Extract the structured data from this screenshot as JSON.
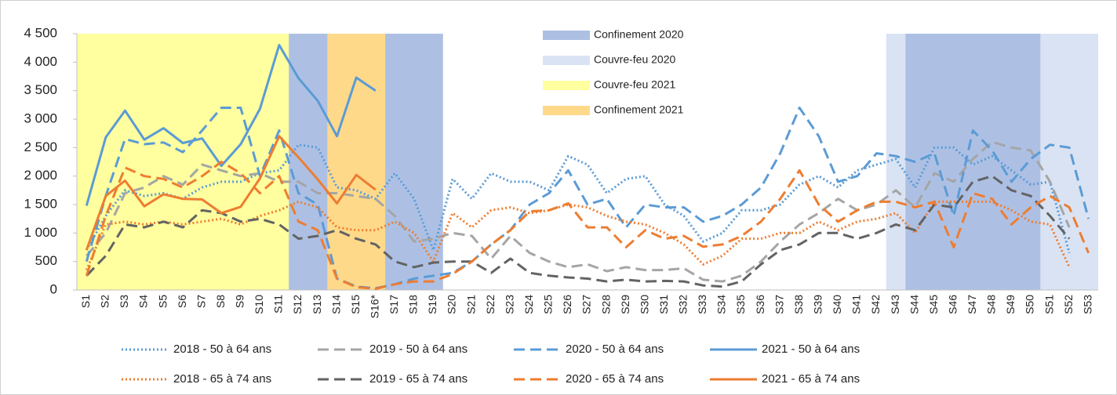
{
  "chart_data": {
    "type": "line",
    "categories": [
      "S1",
      "S2",
      "S3",
      "S4",
      "S5",
      "S6",
      "S7",
      "S8",
      "S9",
      "S10",
      "S11",
      "S12",
      "S13",
      "S14",
      "S15",
      "S16*",
      "S17",
      "S18",
      "S19",
      "S20",
      "S21",
      "S22",
      "S23",
      "S24",
      "S25",
      "S26",
      "S27",
      "S28",
      "S29",
      "S30",
      "S31",
      "S32",
      "S33",
      "S34",
      "S35",
      "S36",
      "S37",
      "S38",
      "S39",
      "S40",
      "S41",
      "S42",
      "S43",
      "S44",
      "S45",
      "S46",
      "S47",
      "S48",
      "S49",
      "S50",
      "S51",
      "S52",
      "S53"
    ],
    "ylim": [
      0,
      4500
    ],
    "yticks": [
      0,
      500,
      {
        "value": 1000,
        "label": "1 000"
      },
      {
        "value": 1500,
        "label": "1 500"
      },
      {
        "value": 2000,
        "label": "2 000"
      },
      {
        "value": 2500,
        "label": "2 500"
      },
      {
        "value": 3000,
        "label": "3 000"
      },
      {
        "value": 3500,
        "label": "3 500"
      },
      {
        "value": 4000,
        "label": "4 000"
      },
      {
        "value": 4500,
        "label": "4 500"
      }
    ],
    "periods": [
      {
        "name": "Confinement 2020",
        "color": "#adc0e4",
        "spans": [
          [
            "S12",
            "S19"
          ],
          [
            "S44",
            "S50"
          ]
        ]
      },
      {
        "name": "Couvre-feu 2020",
        "color": "#dae3f3",
        "spans": [
          [
            "S43",
            "S53"
          ]
        ]
      },
      {
        "name": "Couvre-feu 2021",
        "color": "#ffff9f",
        "spans": [
          [
            "S1",
            "S16*"
          ]
        ]
      },
      {
        "name": "Confinement 2021",
        "color": "#ffd98a",
        "spans": [
          [
            "S14",
            "S16*"
          ]
        ]
      }
    ],
    "series": [
      {
        "name": "2018 - 50 à 64 ans",
        "color": "#5b9bd5",
        "dash": "dotted",
        "values": [
          700,
          1300,
          1750,
          1650,
          1700,
          1600,
          1800,
          1900,
          1900,
          2050,
          2100,
          2550,
          2500,
          1800,
          1750,
          1600,
          2050,
          1600,
          700,
          1950,
          1600,
          2050,
          1900,
          1900,
          1750,
          2350,
          2200,
          1700,
          1950,
          2000,
          1500,
          1300,
          850,
          1000,
          1400,
          1400,
          1500,
          1850,
          2000,
          1800,
          2100,
          2200,
          2300,
          1800,
          2500,
          2500,
          2200,
          2350,
          2100,
          1850,
          1900,
          650,
          null
        ]
      },
      {
        "name": "2019 - 50 à 64 ans",
        "color": "#a5a5a5",
        "dash": "dashed",
        "values": [
          600,
          1000,
          1700,
          1800,
          2000,
          1850,
          2200,
          2100,
          2000,
          2050,
          1900,
          1900,
          1700,
          1700,
          1650,
          1600,
          1300,
          850,
          900,
          1000,
          950,
          550,
          950,
          650,
          500,
          400,
          450,
          330,
          400,
          350,
          350,
          380,
          180,
          150,
          250,
          500,
          850,
          1150,
          1350,
          1600,
          1400,
          1500,
          1750,
          1450,
          2050,
          1900,
          2300,
          2600,
          2500,
          2450,
          1900,
          1100,
          null
        ]
      },
      {
        "name": "2020 - 50 à 64 ans",
        "color": "#5b9bd5",
        "dash": "dashed",
        "values": [
          500,
          1650,
          2650,
          2560,
          2590,
          2420,
          2800,
          3200,
          3200,
          2000,
          2800,
          1700,
          1500,
          200,
          60,
          30,
          100,
          200,
          250,
          300,
          500,
          800,
          1050,
          1500,
          1700,
          2100,
          1500,
          1600,
          1100,
          1500,
          1450,
          1450,
          1200,
          1300,
          1500,
          1800,
          2400,
          3200,
          2700,
          1900,
          2000,
          2400,
          2350,
          2250,
          2400,
          1300,
          2800,
          2450,
          1900,
          2300,
          2550,
          2500,
          1250
        ]
      },
      {
        "name": "2021 - 50 à 64 ans",
        "color": "#5b9bd5",
        "dash": "solid",
        "values": [
          1480,
          2680,
          3150,
          2640,
          2840,
          2580,
          2660,
          2180,
          2560,
          3180,
          4300,
          3720,
          3320,
          2700,
          3730,
          3500,
          null,
          null,
          null,
          null,
          null,
          null,
          null,
          null,
          null,
          null,
          null,
          null,
          null,
          null,
          null,
          null,
          null,
          null,
          null,
          null,
          null,
          null,
          null,
          null,
          null,
          null,
          null,
          null,
          null,
          null,
          null,
          null,
          null,
          null,
          null,
          null,
          null
        ]
      },
      {
        "name": "2018 - 65 à 74 ans",
        "color": "#ed7d31",
        "dash": "dotted",
        "values": [
          350,
          1150,
          1200,
          1150,
          1200,
          1150,
          1200,
          1250,
          1150,
          1300,
          1400,
          1550,
          1450,
          1100,
          1050,
          1050,
          1200,
          1000,
          500,
          1350,
          1100,
          1400,
          1450,
          1350,
          1400,
          1500,
          1450,
          1300,
          1200,
          1150,
          1000,
          800,
          450,
          600,
          900,
          900,
          1000,
          1000,
          1200,
          1050,
          1200,
          1250,
          1350,
          1000,
          1550,
          1550,
          1550,
          1550,
          1400,
          1200,
          1150,
          400,
          null
        ]
      },
      {
        "name": "2019 - 65 à 74 ans",
        "color": "#636363",
        "dash": "dashed",
        "values": [
          250,
          600,
          1150,
          1100,
          1200,
          1100,
          1400,
          1350,
          1200,
          1250,
          1150,
          900,
          950,
          1050,
          900,
          800,
          500,
          400,
          480,
          500,
          500,
          300,
          550,
          300,
          250,
          220,
          200,
          150,
          180,
          150,
          160,
          150,
          80,
          60,
          150,
          450,
          700,
          800,
          1000,
          1000,
          900,
          1000,
          1150,
          1050,
          1500,
          1450,
          1900,
          2000,
          1750,
          1650,
          1300,
          900,
          null
        ]
      },
      {
        "name": "2020 - 65 à 74 ans",
        "color": "#ed7d31",
        "dash": "dashed",
        "values": [
          250,
          1300,
          2150,
          2000,
          1950,
          1800,
          2000,
          2250,
          2050,
          1700,
          2000,
          1200,
          1050,
          200,
          50,
          20,
          100,
          150,
          150,
          280,
          500,
          800,
          1050,
          1380,
          1400,
          1520,
          1100,
          1100,
          750,
          1050,
          900,
          950,
          760,
          800,
          950,
          1200,
          1600,
          2100,
          1500,
          1200,
          1400,
          1550,
          1550,
          1450,
          1550,
          750,
          1700,
          1600,
          1150,
          1450,
          1650,
          1450,
          650
        ]
      },
      {
        "name": "2021 - 65 à 74 ans",
        "color": "#ed7d31",
        "dash": "solid",
        "values": [
          700,
          1650,
          1920,
          1470,
          1680,
          1600,
          1590,
          1350,
          1460,
          1960,
          2700,
          2330,
          1940,
          1520,
          2020,
          1760,
          null,
          null,
          null,
          null,
          null,
          null,
          null,
          null,
          null,
          null,
          null,
          null,
          null,
          null,
          null,
          null,
          null,
          null,
          null,
          null,
          null,
          null,
          null,
          null,
          null,
          null,
          null,
          null,
          null,
          null,
          null,
          null,
          null,
          null,
          null,
          null,
          null
        ]
      }
    ]
  }
}
